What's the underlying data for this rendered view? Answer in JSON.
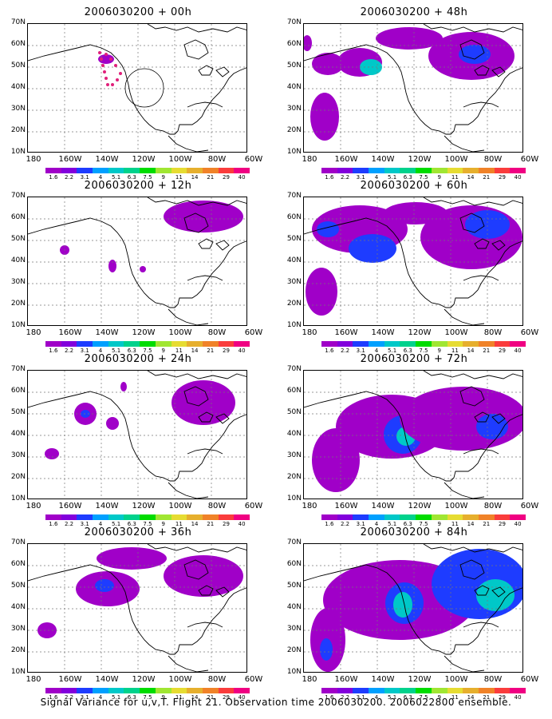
{
  "panels": [
    {
      "title": "2006030200 + 00h"
    },
    {
      "title": "2006030200 + 48h"
    },
    {
      "title": "2006030200 + 12h"
    },
    {
      "title": "2006030200 + 60h"
    },
    {
      "title": "2006030200 + 24h"
    },
    {
      "title": "2006030200 + 72h"
    },
    {
      "title": "2006030200 + 36h"
    },
    {
      "title": "2006030200 + 84h"
    }
  ],
  "lat_labels": [
    "70N",
    "60N",
    "50N",
    "40N",
    "30N",
    "20N",
    "10N"
  ],
  "lon_labels": [
    "180",
    "160W",
    "140W",
    "120W",
    "100W",
    "80W",
    "60W"
  ],
  "colorbar": {
    "labels": [
      "1.6",
      "2.2",
      "3.1",
      "4",
      "5.1",
      "6.3",
      "7.5",
      "9",
      "11",
      "14",
      "21",
      "29",
      "40"
    ],
    "colors": [
      "#a000c8",
      "#8200dc",
      "#1e3cff",
      "#00a0ff",
      "#00c8c8",
      "#00d28c",
      "#00dc00",
      "#a0e632",
      "#e6dc32",
      "#e6af2d",
      "#f08228",
      "#fa3c3c",
      "#f00082"
    ]
  },
  "caption": "Signal Variance for u,v,T. Flight 21. Observation time 2006030200. 2006022800 ensemble."
}
